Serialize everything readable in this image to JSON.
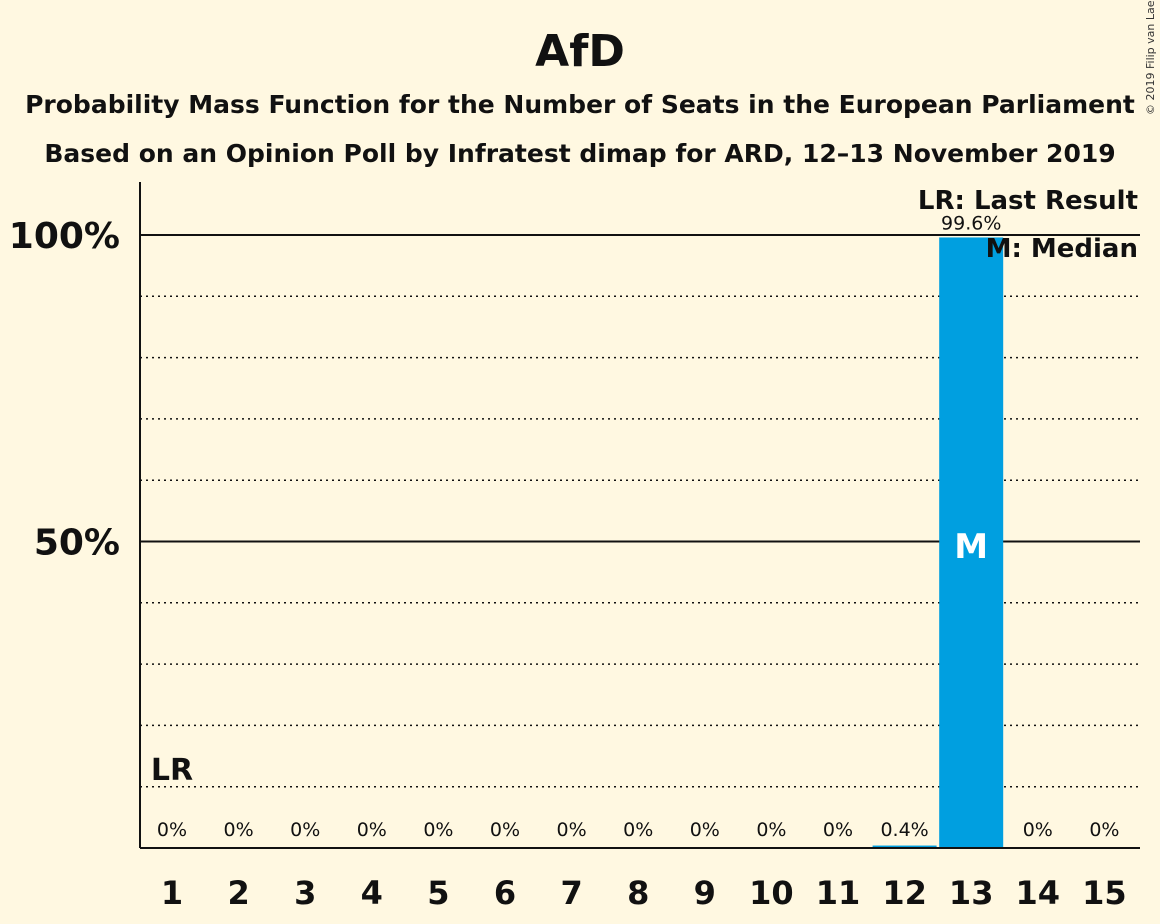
{
  "chart_data": {
    "type": "bar",
    "title": "AfD",
    "subtitle_lines": [
      "Probability Mass Function for the Number of Seats in the European Parliament",
      "Based on an Opinion Poll by Infratest dimap for ARD, 12–13 November 2019"
    ],
    "copyright": "© 2019 Filip van Laenen",
    "categories": [
      "1",
      "2",
      "3",
      "4",
      "5",
      "6",
      "7",
      "8",
      "9",
      "10",
      "11",
      "12",
      "13",
      "14",
      "15"
    ],
    "values": [
      0,
      0,
      0,
      0,
      0,
      0,
      0,
      0,
      0,
      0,
      0,
      0.4,
      99.6,
      0,
      0
    ],
    "value_labels": [
      "0%",
      "0%",
      "0%",
      "0%",
      "0%",
      "0%",
      "0%",
      "0%",
      "0%",
      "0%",
      "0%",
      "0.4%",
      "99.6%",
      "0%",
      "0%"
    ],
    "ylim": [
      0,
      110
    ],
    "yticks": [
      {
        "value": 50,
        "label": "50%"
      },
      {
        "value": 100,
        "label": "100%"
      }
    ],
    "minor_gridlines": [
      10,
      20,
      30,
      40,
      60,
      70,
      80,
      90
    ],
    "grid": true,
    "last_result": {
      "category": "1",
      "label": "LR"
    },
    "median": {
      "category": "13",
      "label": "M"
    },
    "legend": {
      "position": "top-right",
      "entries": [
        "LR: Last Result",
        "M: Median"
      ]
    },
    "colors": {
      "bar": "#009fe0",
      "background": "#fff8e1",
      "axis": "#111111"
    }
  }
}
